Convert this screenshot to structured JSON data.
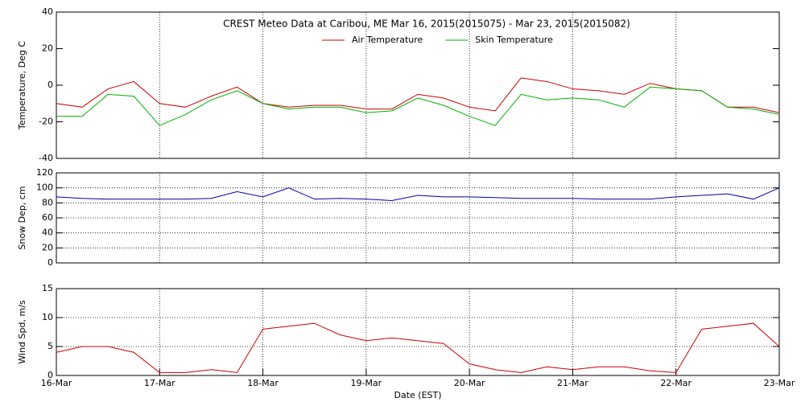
{
  "chart_data": [
    {
      "type": "line",
      "title": "CREST Meteo Data at Caribou, ME   Mar 16, 2015(2015075) - Mar 23, 2015(2015082)",
      "y_label": "Temperature, Deg C",
      "legend": "top",
      "x": [
        16,
        16.25,
        16.5,
        16.75,
        17,
        17.25,
        17.5,
        17.75,
        18,
        18.25,
        18.5,
        18.75,
        19,
        19.25,
        19.5,
        19.75,
        20,
        20.25,
        20.5,
        20.75,
        21,
        21.25,
        21.5,
        21.75,
        22,
        22.25,
        22.5,
        22.75,
        23
      ],
      "xlim": [
        16,
        23
      ],
      "ylim": [
        -40,
        40
      ],
      "yticks": [
        -40,
        -20,
        0,
        20,
        40
      ],
      "xgrid": true,
      "ygrid": false,
      "series": [
        {
          "name": "Air Temperature",
          "color": "#cc0000",
          "values": [
            -10,
            -12,
            -2,
            2,
            -10,
            -12,
            -6,
            -1,
            -10,
            -12,
            -11,
            -11,
            -13,
            -13,
            -5,
            -7,
            -12,
            -14,
            4,
            2,
            -2,
            -3,
            -5,
            1,
            -2,
            -3,
            -12,
            -12,
            -15
          ]
        },
        {
          "name": "Skin Temperature",
          "color": "#00b000",
          "values": [
            -17,
            -17,
            -5,
            -6,
            -22,
            -16,
            -8,
            -3,
            -10,
            -13,
            -12,
            -12,
            -15,
            -14,
            -7,
            -11,
            -17,
            -22,
            -5,
            -8,
            -7,
            -8,
            -12,
            -1,
            -2,
            -3,
            -12,
            -13,
            -16
          ]
        }
      ]
    },
    {
      "type": "line",
      "y_label": "Snow Dep, cm",
      "x": [
        16,
        16.25,
        16.5,
        16.75,
        17,
        17.25,
        17.5,
        17.75,
        18,
        18.25,
        18.5,
        18.75,
        19,
        19.25,
        19.5,
        19.75,
        20,
        20.25,
        20.5,
        20.75,
        21,
        21.25,
        21.5,
        21.75,
        22,
        22.25,
        22.5,
        22.75,
        23
      ],
      "xlim": [
        16,
        23
      ],
      "ylim": [
        0,
        120
      ],
      "yticks": [
        0,
        20,
        40,
        60,
        80,
        100,
        120
      ],
      "xgrid": true,
      "ygrid": true,
      "series": [
        {
          "color": "#0000aa",
          "values": [
            88,
            86,
            85,
            85,
            85,
            85,
            86,
            95,
            88,
            100,
            85,
            86,
            85,
            83,
            90,
            88,
            88,
            87,
            86,
            86,
            86,
            85,
            85,
            85,
            88,
            90,
            92,
            85,
            100
          ]
        }
      ]
    },
    {
      "type": "line",
      "y_label": "Wind Spd, m/s",
      "x_label": "Date (EST)",
      "x": [
        16,
        16.25,
        16.5,
        16.75,
        17,
        17.25,
        17.5,
        17.75,
        18,
        18.25,
        18.5,
        18.75,
        19,
        19.25,
        19.5,
        19.75,
        20,
        20.25,
        20.5,
        20.75,
        21,
        21.25,
        21.5,
        21.75,
        22,
        22.25,
        22.5,
        22.75,
        23
      ],
      "xlim": [
        16,
        23
      ],
      "ylim": [
        0,
        15
      ],
      "yticks": [
        0,
        5,
        10,
        15
      ],
      "xgrid": true,
      "ygrid": true,
      "xticks": [
        {
          "value": 16,
          "label": "16-Mar"
        },
        {
          "value": 17,
          "label": "17-Mar"
        },
        {
          "value": 18,
          "label": "18-Mar"
        },
        {
          "value": 19,
          "label": "19-Mar"
        },
        {
          "value": 20,
          "label": "20-Mar"
        },
        {
          "value": 21,
          "label": "21-Mar"
        },
        {
          "value": 22,
          "label": "22-Mar"
        },
        {
          "value": 23,
          "label": "23-Mar"
        }
      ],
      "series": [
        {
          "color": "#cc0000",
          "values": [
            4,
            5,
            5,
            4,
            0.5,
            0.5,
            1,
            0.5,
            8,
            8.5,
            9,
            7,
            6,
            6.5,
            6,
            5.5,
            2,
            1,
            0.5,
            1.5,
            1,
            1.5,
            1.5,
            0.8,
            0.5,
            8,
            8.5,
            9,
            5
          ]
        }
      ]
    }
  ]
}
